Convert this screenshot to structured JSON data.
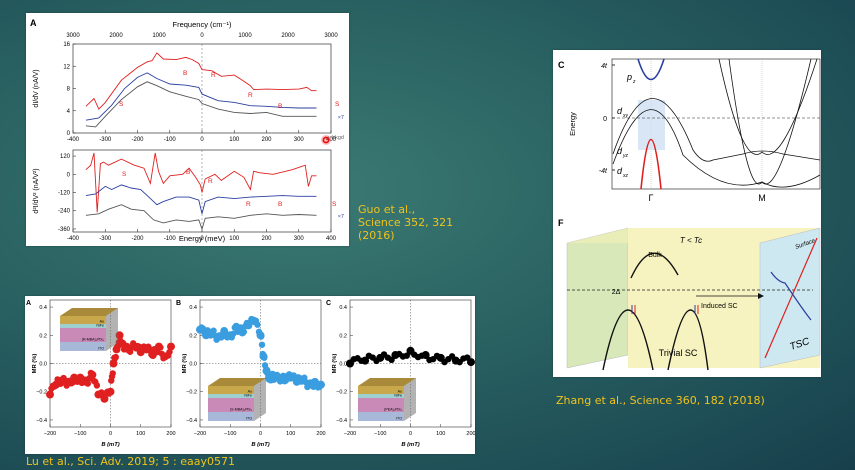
{
  "slide": {
    "citations": {
      "guo": [
        "Guo et al.,",
        "Science 352, 321",
        "(2016)"
      ],
      "lu": "Lu et al., Sci. Adv. 2019; 5 : eaay0571",
      "zhang": "Zhang et al., Science 360, 182 (2018)"
    },
    "colors": {
      "citation": "#f0c419",
      "red": "#e02020",
      "blue": "#2a3fa0",
      "gray": "#555555",
      "cyan": "#3a9de0"
    }
  },
  "chart_data": [
    {
      "id": "guo-A",
      "panel_label": "A",
      "type": "line",
      "top_axis": {
        "label": "Frequency (cm⁻¹)",
        "ticks": [
          "3000",
          "2000",
          "1000",
          "0",
          "1000",
          "2000",
          "3000"
        ]
      },
      "subplots": [
        {
          "ylabel": "dI/dV (nA/V)",
          "ylim": [
            0,
            16
          ],
          "yticks": [
            "0",
            "4",
            "8",
            "12",
            "16"
          ],
          "xlim": [
            -400,
            400
          ],
          "xticks": [
            "-400",
            "-300",
            "-200",
            "-100",
            "0",
            "100",
            "200",
            "300",
            "400"
          ],
          "series": [
            {
              "name": "red",
              "x": [
                -360,
                -335,
                -320,
                -300,
                -250,
                -200,
                -170,
                -155,
                -140,
                -120,
                -80,
                -50,
                -30,
                -10,
                0,
                30,
                60,
                100,
                130,
                150,
                160,
                200,
                250,
                300,
                325,
                340,
                355
              ],
              "y": [
                4.8,
                6.2,
                4.3,
                5.5,
                9.5,
                11.8,
                12.8,
                13,
                14.4,
                13.3,
                13.2,
                13.6,
                13.2,
                12.5,
                11.4,
                11.2,
                10.2,
                10.4,
                9.3,
                8.5,
                7.8,
                7.9,
                7.8,
                7.9,
                8.2,
                7.6,
                7.6
              ]
            },
            {
              "name": "blue ×7",
              "x": [
                -360,
                -320,
                -280,
                -240,
                -200,
                -170,
                -140,
                -100,
                -50,
                -10,
                0,
                50,
                100,
                150,
                200,
                250,
                300,
                355
              ],
              "y": [
                2.3,
                2.7,
                5.0,
                8.0,
                10.0,
                10.8,
                9.8,
                8.8,
                8.6,
                8.2,
                7.0,
                5.8,
                5.5,
                4.9,
                4.8,
                4.6,
                4.5,
                4.5
              ]
            },
            {
              "name": "bkgd",
              "x": [
                -360,
                -330,
                -300,
                -250,
                -200,
                -170,
                -140,
                -100,
                -50,
                -10,
                0,
                50,
                100,
                150,
                200,
                250,
                300,
                355
              ],
              "y": [
                1.3,
                1.1,
                3.0,
                6.0,
                8.3,
                9.2,
                8.5,
                7.4,
                6.6,
                6.0,
                5.3,
                4.3,
                3.7,
                3.5,
                3.7,
                3.0,
                3.0,
                3.0
              ]
            }
          ],
          "annotations": [
            "S",
            "B",
            "R",
            "R",
            "B",
            "S",
            "×7",
            "bkgd"
          ]
        },
        {
          "ylabel": "d²I/dV² (nA/V²)",
          "ylim": [
            -380,
            160
          ],
          "yticks": [
            "120",
            "0",
            "-120",
            "-240",
            "-360"
          ],
          "xlim": [
            -400,
            400
          ],
          "xticks": [
            "-400",
            "-300",
            "-200",
            "-100",
            "0",
            "100",
            "200",
            "300",
            "400"
          ],
          "xlabel": "Energy (meV)",
          "series": [
            {
              "name": "red",
              "x": [
                -360,
                -345,
                -335,
                -325,
                -315,
                -305,
                -290,
                -250,
                -210,
                -180,
                -160,
                -145,
                -135,
                -120,
                -100,
                -60,
                -40,
                -20,
                -5,
                0,
                10,
                40,
                60,
                100,
                130,
                150,
                160,
                180,
                220,
                280,
                320,
                330,
                340,
                355
              ],
              "y": [
                30,
                60,
                140,
                -250,
                70,
                80,
                60,
                100,
                60,
                40,
                -60,
                140,
                20,
                -60,
                -10,
                0,
                40,
                -20,
                -70,
                -120,
                -30,
                0,
                -40,
                20,
                -20,
                -100,
                20,
                10,
                0,
                30,
                60,
                -80,
                -10,
                -10
              ]
            },
            {
              "name": "blue ×7",
              "x": [
                -360,
                -330,
                -300,
                -280,
                -250,
                -220,
                -190,
                -160,
                -140,
                -120,
                -80,
                -40,
                -10,
                0,
                10,
                50,
                100,
                150,
                200,
                250,
                300,
                355
              ],
              "y": [
                -140,
                -130,
                -80,
                -100,
                -70,
                -90,
                -100,
                -160,
                -200,
                -180,
                -150,
                -150,
                -170,
                -260,
                -180,
                -150,
                -160,
                -150,
                -145,
                -140,
                -145,
                -145
              ]
            },
            {
              "name": "bkgd",
              "x": [
                -360,
                -320,
                -290,
                -250,
                -220,
                -180,
                -150,
                -120,
                -80,
                -40,
                -10,
                0,
                10,
                50,
                100,
                150,
                200,
                250,
                300,
                355
              ],
              "y": [
                -270,
                -260,
                -230,
                -200,
                -230,
                -240,
                -300,
                -320,
                -300,
                -310,
                -300,
                -360,
                -290,
                -280,
                -290,
                -270,
                -260,
                -270,
                -265,
                -270
              ]
            }
          ],
          "annotations": [
            "S",
            "B",
            "R",
            "R",
            "B",
            "S",
            "×7"
          ]
        }
      ]
    },
    {
      "id": "lu-A",
      "panel_label": "A",
      "type": "scatter",
      "xlabel": "B (mT)",
      "ylabel": "MR (%)",
      "xlim": [
        -200,
        200
      ],
      "ylim": [
        -0.45,
        0.45
      ],
      "xticks": [
        "-200",
        "-100",
        "0",
        "100",
        "200"
      ],
      "yticks": [
        "0.4",
        "0.2",
        "0.0",
        "-0.2",
        "-0.4"
      ],
      "inset_layers": [
        "Au",
        "NiFe",
        "(R-MBA)₂PbI₄",
        "ITO"
      ],
      "series": [
        {
          "name": "MR",
          "color": "#e02020",
          "x": [
            -200,
            -180,
            -160,
            -140,
            -120,
            -100,
            -80,
            -60,
            -40,
            -20,
            0,
            10,
            20,
            30,
            40,
            60,
            80,
            100,
            120,
            140,
            160,
            180,
            200
          ],
          "y": [
            -0.22,
            -0.15,
            -0.12,
            -0.13,
            -0.1,
            -0.1,
            -0.13,
            -0.08,
            -0.22,
            -0.25,
            -0.2,
            0.0,
            0.1,
            0.2,
            0.14,
            0.1,
            0.12,
            0.08,
            0.1,
            0.06,
            0.12,
            0.05,
            0.12
          ]
        }
      ]
    },
    {
      "id": "lu-B",
      "panel_label": "B",
      "type": "scatter",
      "xlabel": "B (mT)",
      "ylabel": "MR (%)",
      "xlim": [
        -200,
        200
      ],
      "ylim": [
        -0.45,
        0.45
      ],
      "xticks": [
        "-200",
        "-100",
        "0",
        "100",
        "200"
      ],
      "yticks": [
        "0.4",
        "0.2",
        "0.0",
        "-0.2",
        "-0.4"
      ],
      "inset_layers": [
        "Au",
        "NiFe",
        "(S-MBA)₂PbI₄",
        "ITO"
      ],
      "series": [
        {
          "name": "MR",
          "color": "#3a9de0",
          "x": [
            -200,
            -180,
            -160,
            -140,
            -120,
            -100,
            -80,
            -60,
            -40,
            -20,
            0,
            10,
            20,
            30,
            40,
            60,
            80,
            100,
            120,
            140,
            160,
            180,
            200
          ],
          "y": [
            0.24,
            0.2,
            0.22,
            0.19,
            0.23,
            0.2,
            0.26,
            0.22,
            0.27,
            0.3,
            0.2,
            0.05,
            -0.05,
            -0.1,
            -0.08,
            -0.1,
            -0.12,
            -0.1,
            -0.13,
            -0.12,
            -0.15,
            -0.13,
            -0.15
          ]
        }
      ]
    },
    {
      "id": "lu-C",
      "panel_label": "C",
      "type": "scatter",
      "xlabel": "B (mT)",
      "ylabel": "MR (%)",
      "xlim": [
        -200,
        200
      ],
      "ylim": [
        -0.45,
        0.45
      ],
      "xticks": [
        "-200",
        "-100",
        "0",
        "100",
        "200"
      ],
      "yticks": [
        "0.4",
        "0.2",
        "0.0",
        "-0.2",
        "-0.4"
      ],
      "inset_layers": [
        "Au",
        "NiFe",
        "(PEA)₂PbI₄",
        "ITO"
      ],
      "series": [
        {
          "name": "MR",
          "color": "#000000",
          "x": [
            -200,
            -150,
            -100,
            -50,
            0,
            50,
            100,
            150,
            200
          ],
          "y": [
            0.0,
            0.02,
            0.04,
            0.06,
            0.09,
            0.06,
            0.04,
            0.02,
            0.01
          ]
        }
      ]
    },
    {
      "id": "zhang-C",
      "panel_label": "C",
      "type": "line",
      "ylabel": "Energy",
      "yticks": [
        "4t",
        "0",
        "-4t"
      ],
      "xticks": [
        "Γ",
        "M"
      ],
      "band_labels": [
        "pz",
        "dxy",
        "dyz",
        "dxz"
      ]
    },
    {
      "id": "zhang-F",
      "panel_label": "F",
      "type": "diagram",
      "labels": {
        "title": "T < Tc",
        "bulk": "Bulk",
        "gap": "2Δ",
        "arrow": "Induced SC",
        "trivial": "Trivial SC",
        "surface": "Surface",
        "tsc": "TSC"
      }
    }
  ]
}
